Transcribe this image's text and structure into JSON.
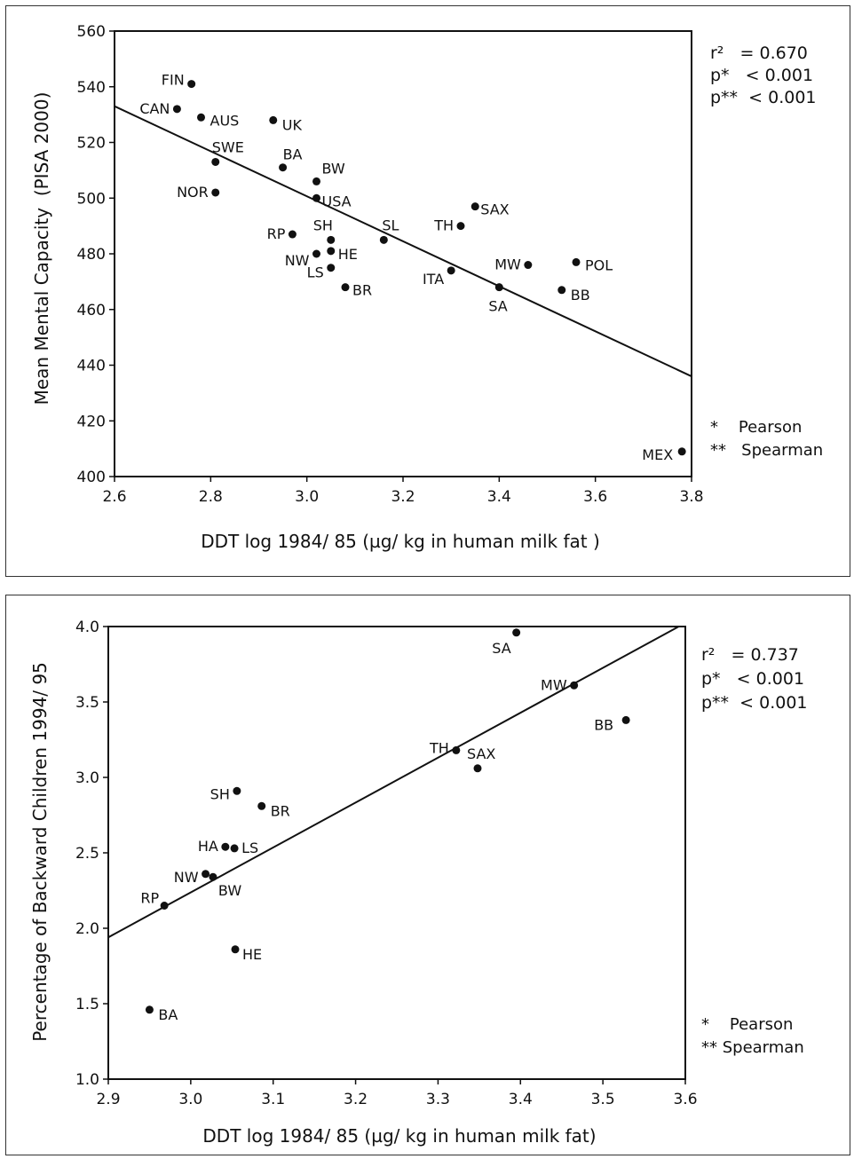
{
  "chart_data": [
    {
      "type": "scatter",
      "xlabel": "DDT log 1984/ 85 (µg/ kg in human milk fat )",
      "ylabel": "Mean Mental Capacity  (PISA 2000)",
      "xlim": [
        2.6,
        3.8
      ],
      "ylim": [
        400,
        560
      ],
      "xticks": [
        "2.6",
        "2.8",
        "3.0",
        "3.2",
        "3.4",
        "3.6",
        "3.8"
      ],
      "yticks": [
        "400",
        "420",
        "440",
        "460",
        "480",
        "500",
        "520",
        "540",
        "560"
      ],
      "points": [
        {
          "label": "FIN",
          "x": 2.76,
          "y": 541
        },
        {
          "label": "CAN",
          "x": 2.73,
          "y": 532
        },
        {
          "label": "AUS",
          "x": 2.78,
          "y": 529
        },
        {
          "label": "UK",
          "x": 2.93,
          "y": 528
        },
        {
          "label": "SWE",
          "x": 2.81,
          "y": 513
        },
        {
          "label": "NOR",
          "x": 2.81,
          "y": 502
        },
        {
          "label": "BA",
          "x": 2.95,
          "y": 511
        },
        {
          "label": "BW",
          "x": 3.02,
          "y": 506
        },
        {
          "label": "USA",
          "x": 3.02,
          "y": 500
        },
        {
          "label": "RP",
          "x": 2.97,
          "y": 487
        },
        {
          "label": "SH",
          "x": 3.05,
          "y": 485
        },
        {
          "label": "NW",
          "x": 3.02,
          "y": 480
        },
        {
          "label": "HE",
          "x": 3.05,
          "y": 481
        },
        {
          "label": "LS",
          "x": 3.05,
          "y": 475
        },
        {
          "label": "BR",
          "x": 3.08,
          "y": 468
        },
        {
          "label": "SL",
          "x": 3.16,
          "y": 485
        },
        {
          "label": "SAX",
          "x": 3.35,
          "y": 497
        },
        {
          "label": "TH",
          "x": 3.32,
          "y": 490
        },
        {
          "label": "ITA",
          "x": 3.3,
          "y": 474
        },
        {
          "label": "SA",
          "x": 3.4,
          "y": 468
        },
        {
          "label": "MW",
          "x": 3.46,
          "y": 476
        },
        {
          "label": "POL",
          "x": 3.56,
          "y": 477
        },
        {
          "label": "BB",
          "x": 3.53,
          "y": 467
        },
        {
          "label": "MEX",
          "x": 3.78,
          "y": 409
        }
      ],
      "fit_line": {
        "x1": 2.6,
        "y1": 533,
        "x2": 3.8,
        "y2": 436
      },
      "stats": [
        "r²   = 0.670",
        "p*   < 0.001",
        "p**  < 0.001"
      ],
      "notes": [
        "*    Pearson",
        "**   Spearman"
      ],
      "grid": false
    },
    {
      "type": "scatter",
      "xlabel": "DDT log 1984/ 85 (µg/ kg in human milk fat)",
      "ylabel": "Percentage of Backward Children 1994/ 95",
      "xlim": [
        2.9,
        3.6
      ],
      "ylim": [
        1.0,
        4.0
      ],
      "xticks": [
        "2.9",
        "3.0",
        "3.1",
        "3.2",
        "3.3",
        "3.4",
        "3.5",
        "3.6"
      ],
      "yticks": [
        "1.0",
        "1.5",
        "2.0",
        "2.5",
        "3.0",
        "3.5",
        "4.0"
      ],
      "points": [
        {
          "label": "SA",
          "x": 3.395,
          "y": 3.96
        },
        {
          "label": "MW",
          "x": 3.465,
          "y": 3.61
        },
        {
          "label": "BB",
          "x": 3.528,
          "y": 3.38
        },
        {
          "label": "TH",
          "x": 3.322,
          "y": 3.18
        },
        {
          "label": "SAX",
          "x": 3.348,
          "y": 3.06
        },
        {
          "label": "SH",
          "x": 3.056,
          "y": 2.91
        },
        {
          "label": "BR",
          "x": 3.086,
          "y": 2.81
        },
        {
          "label": "HA",
          "x": 3.042,
          "y": 2.54
        },
        {
          "label": "LS",
          "x": 3.053,
          "y": 2.53
        },
        {
          "label": "NW",
          "x": 3.018,
          "y": 2.36
        },
        {
          "label": "BW",
          "x": 3.027,
          "y": 2.34
        },
        {
          "label": "RP",
          "x": 2.968,
          "y": 2.15
        },
        {
          "label": "HE",
          "x": 3.054,
          "y": 1.86
        },
        {
          "label": "BA",
          "x": 2.95,
          "y": 1.46
        }
      ],
      "fit_line": {
        "x1": 2.9,
        "y1": 1.94,
        "x2": 3.592,
        "y2": 4.0
      },
      "stats": [
        "r²   = 0.737",
        "p*   < 0.001",
        "p**  < 0.001"
      ],
      "notes": [
        "*    Pearson",
        "** Spearman"
      ],
      "grid": false
    }
  ]
}
